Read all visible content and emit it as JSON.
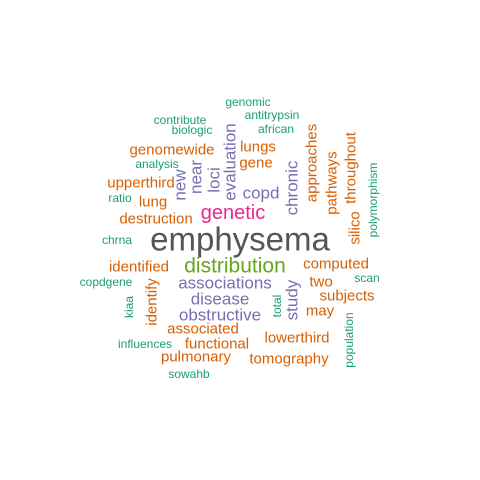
{
  "colors": {
    "teal": "#1b9e77",
    "orange": "#d95f02",
    "purple": "#7570b3",
    "magenta": "#e7298a",
    "green": "#66a61e",
    "gray": "#555555"
  },
  "words": {
    "emphysema": "emphysema",
    "distribution": "distribution",
    "genetic": "genetic",
    "associations": "associations",
    "disease": "disease",
    "obstructive": "obstructive",
    "copd": "copd",
    "loci": "loci",
    "near": "near",
    "new": "new",
    "evaluation": "evaluation",
    "chronic": "chronic",
    "study": "study",
    "lungs": "lungs",
    "gene": "gene",
    "genomewide": "genomewide",
    "upperthird": "upperthird",
    "lung": "lung",
    "destruction": "destruction",
    "identified": "identified",
    "identify": "identify",
    "associated": "associated",
    "functional": "functional",
    "pulmonary": "pulmonary",
    "tomography": "tomography",
    "lowerthird": "lowerthird",
    "may": "may",
    "subjects": "subjects",
    "two": "two",
    "computed": "computed",
    "approaches": "approaches",
    "pathways": "pathways",
    "throughout": "throughout",
    "silico": "silico",
    "genomic": "genomic",
    "antitrypsin": "antitrypsin",
    "african": "african",
    "contribute": "contribute",
    "biologic": "biologic",
    "analysis": "analysis",
    "ratio": "ratio",
    "chrna": "chrna",
    "copdgene": "copdgene",
    "kiaa": "kiaa",
    "influences": "influences",
    "sowahb": "sowahb",
    "total": "total",
    "population": "population",
    "scan": "scan",
    "polymorphism": "polymorphism"
  }
}
